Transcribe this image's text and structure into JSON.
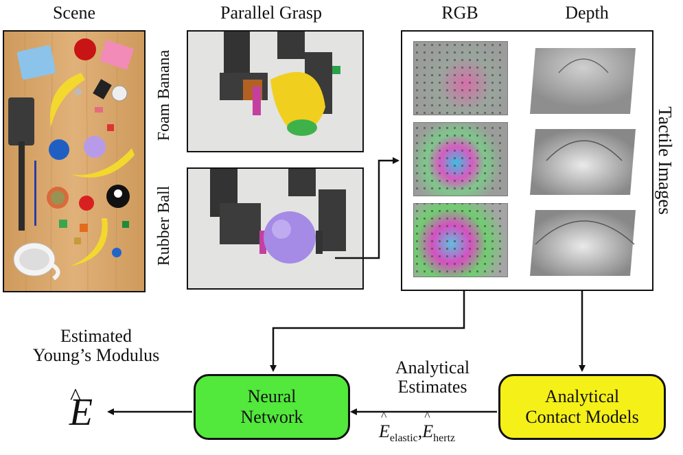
{
  "headings": {
    "scene": "Scene",
    "parallel_grasp": "Parallel Grasp",
    "rgb": "RGB",
    "depth": "Depth"
  },
  "grasp_labels": {
    "top": "Foam Banana",
    "bottom": "Rubber Ball"
  },
  "side_label": "Tactile Images",
  "estimated_caption": [
    "Estimated",
    "Young’s Modulus"
  ],
  "boxes": {
    "neural_network": [
      "Neural",
      "Network"
    ],
    "analytical_models": [
      "Analytical",
      "Contact Models"
    ]
  },
  "analytical_estimates": [
    "Analytical",
    "Estimates"
  ],
  "estimate_symbols": {
    "base": "E",
    "elastic_sub": "elastic",
    "hertz_sub": "hertz",
    "output": "E"
  },
  "colors": {
    "neural_network_fill": "#52e83c",
    "analytical_fill": "#f5f018",
    "wood": "#d9a86c",
    "grasp_background": "#e3e3e1"
  }
}
